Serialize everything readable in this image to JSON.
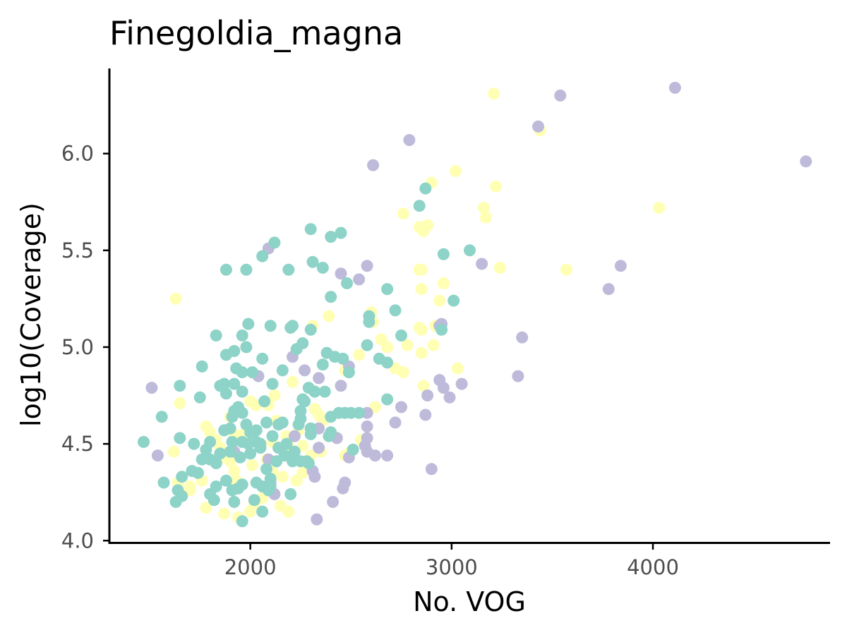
{
  "chart_data": {
    "type": "scatter",
    "title": "Finegoldia_magna",
    "xlabel": "No. VOG",
    "ylabel": "log10(Coverage)",
    "xlim": [
      1300,
      4880
    ],
    "ylim": [
      3.99,
      6.44
    ],
    "xticks": [
      2000,
      3000,
      4000
    ],
    "xtick_labels": [
      "2000",
      "3000",
      "4000"
    ],
    "yticks": [
      4.0,
      4.5,
      5.0,
      5.5,
      6.0
    ],
    "ytick_labels": [
      "4.0",
      "4.5",
      "5.0",
      "5.5",
      "6.0"
    ],
    "grid": false,
    "legend": "none",
    "colors": [
      "#8dd3c7",
      "#ffffb3",
      "#bebada"
    ],
    "series": [
      {
        "color": "#ffffb3",
        "points": [
          [
            3210,
            6.31
          ],
          [
            3440,
            6.12
          ],
          [
            3020,
            5.91
          ],
          [
            3220,
            5.83
          ],
          [
            2900,
            5.85
          ],
          [
            3160,
            5.72
          ],
          [
            3170,
            5.67
          ],
          [
            2760,
            5.69
          ],
          [
            2840,
            5.62
          ],
          [
            2860,
            5.6
          ],
          [
            2880,
            5.63
          ],
          [
            2840,
            5.4
          ],
          [
            2850,
            5.4
          ],
          [
            3240,
            5.41
          ],
          [
            3570,
            5.4
          ],
          [
            4030,
            5.72
          ],
          [
            2960,
            5.33
          ],
          [
            2850,
            5.3
          ],
          [
            2940,
            5.24
          ],
          [
            2390,
            5.16
          ],
          [
            2600,
            5.18
          ],
          [
            2610,
            5.13
          ],
          [
            2840,
            5.1
          ],
          [
            2850,
            5.09
          ],
          [
            2920,
            5.11
          ],
          [
            2650,
            5.04
          ],
          [
            2680,
            5.0
          ],
          [
            2780,
            5.01
          ],
          [
            2850,
            4.97
          ],
          [
            2910,
            5.01
          ],
          [
            2720,
            4.89
          ],
          [
            2760,
            4.87
          ],
          [
            3030,
            4.89
          ],
          [
            2540,
            4.96
          ],
          [
            2470,
            4.88
          ],
          [
            2860,
            4.8
          ],
          [
            2620,
            4.69
          ],
          [
            2320,
            4.68
          ],
          [
            2340,
            4.65
          ],
          [
            2120,
            4.75
          ],
          [
            2210,
            4.82
          ],
          [
            2000,
            4.72
          ],
          [
            2030,
            4.7
          ],
          [
            1900,
            4.64
          ],
          [
            1780,
            4.59
          ],
          [
            1800,
            4.56
          ],
          [
            1830,
            4.52
          ],
          [
            1850,
            4.48
          ],
          [
            1860,
            4.43
          ],
          [
            1900,
            4.41
          ],
          [
            1920,
            4.36
          ],
          [
            1930,
            4.31
          ],
          [
            1760,
            4.31
          ],
          [
            1700,
            4.26
          ],
          [
            1640,
            4.3
          ],
          [
            1620,
            4.46
          ],
          [
            1780,
            4.17
          ],
          [
            1870,
            4.14
          ],
          [
            1940,
            4.12
          ],
          [
            2000,
            4.15
          ],
          [
            2020,
            4.19
          ],
          [
            2060,
            4.22
          ],
          [
            2150,
            4.18
          ],
          [
            2190,
            4.15
          ],
          [
            2230,
            4.31
          ],
          [
            2260,
            4.35
          ],
          [
            2300,
            4.44
          ],
          [
            2350,
            4.46
          ],
          [
            2260,
            4.49
          ],
          [
            2470,
            4.44
          ],
          [
            2500,
            4.46
          ],
          [
            2190,
            4.49
          ],
          [
            2110,
            4.51
          ],
          [
            2050,
            4.49
          ],
          [
            1970,
            4.55
          ],
          [
            1920,
            4.55
          ],
          [
            1630,
            5.25
          ],
          [
            1650,
            4.71
          ],
          [
            2090,
            4.7
          ],
          [
            2130,
            4.62
          ],
          [
            2180,
            4.54
          ],
          [
            2240,
            4.57
          ],
          [
            2360,
            4.62
          ],
          [
            2430,
            4.53
          ],
          [
            2550,
            4.52
          ],
          [
            2010,
            4.39
          ],
          [
            2110,
            4.36
          ],
          [
            2160,
            4.33
          ],
          [
            1700,
            4.28
          ],
          [
            2080,
            4.42
          ],
          [
            2310,
            5.11
          ]
        ]
      },
      {
        "color": "#bebada",
        "points": [
          [
            4110,
            6.34
          ],
          [
            3540,
            6.3
          ],
          [
            3430,
            6.14
          ],
          [
            2790,
            6.07
          ],
          [
            2610,
            5.94
          ],
          [
            4760,
            5.96
          ],
          [
            3840,
            5.42
          ],
          [
            3150,
            5.43
          ],
          [
            3780,
            5.3
          ],
          [
            2580,
            5.42
          ],
          [
            2450,
            5.38
          ],
          [
            2540,
            5.35
          ],
          [
            2090,
            5.51
          ],
          [
            2210,
            4.95
          ],
          [
            2270,
            4.88
          ],
          [
            2490,
            4.9
          ],
          [
            2950,
            5.12
          ],
          [
            2940,
            5.11
          ],
          [
            3350,
            5.05
          ],
          [
            2940,
            4.83
          ],
          [
            3050,
            4.81
          ],
          [
            2960,
            4.79
          ],
          [
            3330,
            4.85
          ],
          [
            2450,
            4.8
          ],
          [
            2880,
            4.75
          ],
          [
            2990,
            4.74
          ],
          [
            2750,
            4.69
          ],
          [
            2720,
            4.61
          ],
          [
            2870,
            4.65
          ],
          [
            2580,
            4.59
          ],
          [
            2580,
            4.53
          ],
          [
            2580,
            4.46
          ],
          [
            2570,
            4.49
          ],
          [
            2620,
            4.44
          ],
          [
            2680,
            4.44
          ],
          [
            2430,
            4.53
          ],
          [
            2490,
            4.43
          ],
          [
            2310,
            4.36
          ],
          [
            2320,
            4.33
          ],
          [
            2470,
            4.3
          ],
          [
            2460,
            4.27
          ],
          [
            2410,
            4.2
          ],
          [
            2330,
            4.11
          ],
          [
            2100,
            4.26
          ],
          [
            2100,
            4.3
          ],
          [
            2340,
            4.58
          ],
          [
            2340,
            4.48
          ],
          [
            1920,
            4.46
          ],
          [
            1540,
            4.44
          ],
          [
            1510,
            4.79
          ],
          [
            2900,
            4.37
          ],
          [
            2580,
            4.66
          ],
          [
            2340,
            4.84
          ],
          [
            2040,
            4.85
          ],
          [
            2220,
            4.54
          ],
          [
            2090,
            4.42
          ],
          [
            2120,
            4.24
          ]
        ]
      },
      {
        "color": "#8dd3c7",
        "points": [
          [
            2870,
            5.82
          ],
          [
            2840,
            5.73
          ],
          [
            2300,
            5.61
          ],
          [
            2400,
            5.57
          ],
          [
            2450,
            5.59
          ],
          [
            2120,
            5.54
          ],
          [
            2060,
            5.47
          ],
          [
            1880,
            5.4
          ],
          [
            1980,
            5.4
          ],
          [
            2190,
            5.4
          ],
          [
            2310,
            5.44
          ],
          [
            2360,
            5.41
          ],
          [
            2960,
            5.48
          ],
          [
            3090,
            5.5
          ],
          [
            2480,
            5.33
          ],
          [
            2680,
            5.3
          ],
          [
            2400,
            5.26
          ],
          [
            3010,
            5.24
          ],
          [
            2720,
            5.19
          ],
          [
            2590,
            5.16
          ],
          [
            2590,
            5.13
          ],
          [
            1990,
            5.12
          ],
          [
            2100,
            5.11
          ],
          [
            2200,
            5.1
          ],
          [
            2210,
            5.11
          ],
          [
            2300,
            5.09
          ],
          [
            1830,
            5.06
          ],
          [
            1960,
            5.06
          ],
          [
            2750,
            5.06
          ],
          [
            2950,
            5.09
          ],
          [
            2260,
            5.02
          ],
          [
            2230,
            4.99
          ],
          [
            2580,
            5.01
          ],
          [
            1880,
            4.96
          ],
          [
            1920,
            4.98
          ],
          [
            1980,
            5.0
          ],
          [
            2060,
            4.94
          ],
          [
            2380,
            4.97
          ],
          [
            2420,
            4.95
          ],
          [
            2460,
            4.94
          ],
          [
            2640,
            4.94
          ],
          [
            2680,
            4.92
          ],
          [
            2360,
            4.91
          ],
          [
            2490,
            4.87
          ],
          [
            1760,
            4.9
          ],
          [
            1930,
            4.89
          ],
          [
            1960,
            4.87
          ],
          [
            2010,
            4.87
          ],
          [
            2160,
            4.88
          ],
          [
            2110,
            4.81
          ],
          [
            1920,
            4.81
          ],
          [
            1850,
            4.8
          ],
          [
            1870,
            4.81
          ],
          [
            1650,
            4.8
          ],
          [
            2290,
            4.79
          ],
          [
            2320,
            4.77
          ],
          [
            2370,
            4.77
          ],
          [
            1960,
            4.77
          ],
          [
            1880,
            4.76
          ],
          [
            2260,
            4.73
          ],
          [
            2270,
            4.72
          ],
          [
            2680,
            4.73
          ],
          [
            2070,
            4.72
          ],
          [
            1750,
            4.74
          ],
          [
            1920,
            4.67
          ],
          [
            1940,
            4.69
          ],
          [
            1960,
            4.66
          ],
          [
            1910,
            4.64
          ],
          [
            2250,
            4.67
          ],
          [
            2250,
            4.63
          ],
          [
            2400,
            4.64
          ],
          [
            2440,
            4.66
          ],
          [
            2470,
            4.66
          ],
          [
            2500,
            4.66
          ],
          [
            2540,
            4.66
          ],
          [
            1560,
            4.64
          ],
          [
            1980,
            4.6
          ],
          [
            2080,
            4.61
          ],
          [
            2140,
            4.6
          ],
          [
            2160,
            4.61
          ],
          [
            2240,
            4.6
          ],
          [
            2300,
            4.58
          ],
          [
            2300,
            4.55
          ],
          [
            2400,
            4.56
          ],
          [
            2390,
            4.54
          ],
          [
            1870,
            4.57
          ],
          [
            1900,
            4.58
          ],
          [
            1910,
            4.51
          ],
          [
            1960,
            4.51
          ],
          [
            1990,
            4.5
          ],
          [
            2030,
            4.51
          ],
          [
            2000,
            4.56
          ],
          [
            1800,
            4.51
          ],
          [
            1780,
            4.47
          ],
          [
            1720,
            4.5
          ],
          [
            1470,
            4.51
          ],
          [
            1650,
            4.53
          ],
          [
            2110,
            4.54
          ],
          [
            2180,
            4.5
          ],
          [
            2030,
            4.57
          ],
          [
            2050,
            4.5
          ],
          [
            2510,
            4.47
          ],
          [
            2220,
            4.46
          ],
          [
            2170,
            4.44
          ],
          [
            2130,
            4.41
          ],
          [
            2210,
            4.41
          ],
          [
            2250,
            4.41
          ],
          [
            2290,
            4.4
          ],
          [
            1950,
            4.43
          ],
          [
            1900,
            4.46
          ],
          [
            1850,
            4.45
          ],
          [
            1830,
            4.4
          ],
          [
            1800,
            4.42
          ],
          [
            1760,
            4.42
          ],
          [
            1740,
            4.35
          ],
          [
            1710,
            4.36
          ],
          [
            1660,
            4.33
          ],
          [
            1570,
            4.3
          ],
          [
            1640,
            4.26
          ],
          [
            1630,
            4.2
          ],
          [
            1660,
            4.23
          ],
          [
            1800,
            4.24
          ],
          [
            1820,
            4.21
          ],
          [
            1830,
            4.28
          ],
          [
            1880,
            4.31
          ],
          [
            1910,
            4.26
          ],
          [
            1920,
            4.2
          ],
          [
            1940,
            4.27
          ],
          [
            1960,
            4.29
          ],
          [
            2030,
            4.3
          ],
          [
            2060,
            4.28
          ],
          [
            2090,
            4.26
          ],
          [
            2100,
            4.28
          ],
          [
            2020,
            4.21
          ],
          [
            2060,
            4.15
          ],
          [
            1960,
            4.1
          ],
          [
            2200,
            4.24
          ],
          [
            2280,
            4.41
          ],
          [
            2050,
            4.48
          ],
          [
            2140,
            4.48
          ],
          [
            2000,
            4.45
          ],
          [
            2080,
            4.37
          ],
          [
            2100,
            4.32
          ]
        ]
      }
    ]
  }
}
